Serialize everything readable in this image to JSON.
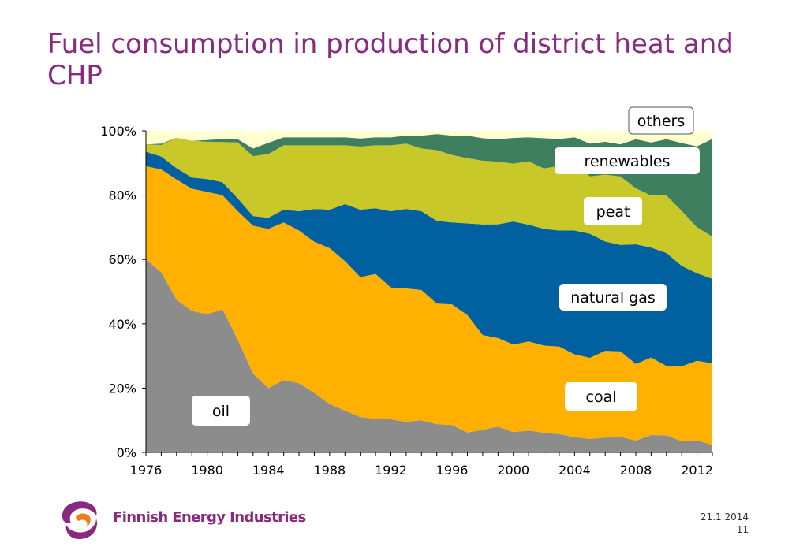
{
  "slide": {
    "title": "Fuel consumption in production of district heat and CHP",
    "brand": "Finnish Energy Industries",
    "date": "21.1.2014",
    "page_number": "11"
  },
  "colors": {
    "oil": "#8c8c8c",
    "coal": "#ffb000",
    "natural_gas": "#0060a0",
    "peat": "#c8c828",
    "renewables": "#3e7f60",
    "others": "#ffffd0",
    "logo_purple": "#8a2a7e",
    "logo_orange": "#f07a1e"
  },
  "chart_data": {
    "type": "area",
    "stacked": true,
    "normalized": true,
    "x": [
      1976,
      1977,
      1978,
      1979,
      1980,
      1981,
      1982,
      1983,
      1984,
      1985,
      1986,
      1987,
      1988,
      1989,
      1990,
      1991,
      1992,
      1993,
      1994,
      1995,
      1996,
      1997,
      1998,
      1999,
      2000,
      2001,
      2002,
      2003,
      2004,
      2005,
      2006,
      2007,
      2008,
      2009,
      2010,
      2011,
      2012,
      2013
    ],
    "series": [
      {
        "name": "oil",
        "values": [
          60,
          56,
          47,
          44,
          43,
          44.5,
          35,
          24.5,
          20,
          22.5,
          21.5,
          18.5,
          15,
          13,
          11,
          10.5,
          10.3,
          9.5,
          10,
          8.8,
          8.5,
          6.2,
          7,
          8,
          6.3,
          6.8,
          6.1,
          5.7,
          4.7,
          4.2,
          4.6,
          4.8,
          3.7,
          5.4,
          5.3,
          3.5,
          3.8,
          2.3
        ]
      },
      {
        "name": "coal",
        "values": [
          29,
          32,
          37,
          38,
          38,
          35.5,
          40,
          46,
          49.5,
          49,
          47.5,
          47,
          48.5,
          46.5,
          43.5,
          45,
          41,
          41.5,
          40.5,
          37.5,
          37.5,
          36.5,
          29.5,
          27.5,
          27.2,
          27.7,
          27.1,
          27.2,
          25.8,
          25.2,
          27,
          26.6,
          23.8,
          24.1,
          21.6,
          23.3,
          24.7,
          25.4
        ]
      },
      {
        "name": "natural gas",
        "values": [
          4.5,
          4,
          3.5,
          3.5,
          4,
          4,
          4,
          3,
          3.5,
          4,
          6,
          10.2,
          12,
          17.7,
          21,
          20.4,
          23.7,
          24.7,
          24.5,
          25.7,
          25.5,
          28.5,
          34.4,
          35.3,
          38.3,
          36.3,
          36.3,
          36.1,
          38.5,
          38.6,
          34,
          33.1,
          37.2,
          34.2,
          35.1,
          31.2,
          27.2,
          26.3
        ]
      },
      {
        "name": "peat",
        "values": [
          2.3,
          3.6,
          9.4,
          11.4,
          11.6,
          12.5,
          17.4,
          18.6,
          19.8,
          20,
          20.5,
          19.8,
          20,
          18.3,
          19.6,
          19.6,
          20.5,
          20.3,
          19.5,
          22,
          21,
          20.3,
          19.8,
          19.4,
          18,
          19.7,
          18.8,
          20.1,
          21.6,
          17.8,
          20.8,
          21.3,
          17.4,
          16.2,
          17.9,
          17.1,
          14.3,
          13.1
        ]
      },
      {
        "name": "renewables",
        "values": [
          0,
          0.4,
          0,
          0,
          0.5,
          1,
          1,
          2.4,
          3.5,
          2.5,
          2.5,
          2.5,
          2.5,
          2.5,
          2.5,
          2.5,
          2.5,
          2.5,
          4,
          5,
          6,
          7,
          7,
          7,
          8,
          7.5,
          9.4,
          8.4,
          7.4,
          10.2,
          10.2,
          10,
          15.3,
          16.5,
          17.5,
          21.1,
          25.2,
          30.4
        ]
      },
      {
        "name": "others",
        "values": [
          4.2,
          4,
          2.1,
          3.1,
          2.9,
          2.5,
          2.6,
          5.5,
          3.7,
          2,
          2,
          2,
          2,
          2,
          2.4,
          2,
          2,
          1.5,
          1.5,
          1,
          1.5,
          1.5,
          2.3,
          2.6,
          2.2,
          2,
          2.3,
          2.5,
          2,
          4,
          3.4,
          4.2,
          2.6,
          3.6,
          2.6,
          3.8,
          4.8,
          2.5
        ]
      }
    ],
    "ylim": [
      0,
      100
    ],
    "y_ticks": [
      "0%",
      "20%",
      "40%",
      "60%",
      "80%",
      "100%"
    ],
    "x_ticks": [
      "1976",
      "1980",
      "1984",
      "1988",
      "1992",
      "1996",
      "2000",
      "2004",
      "2008",
      "2012"
    ],
    "labels": [
      "others",
      "renewables",
      "peat",
      "natural gas",
      "coal",
      "oil"
    ]
  }
}
